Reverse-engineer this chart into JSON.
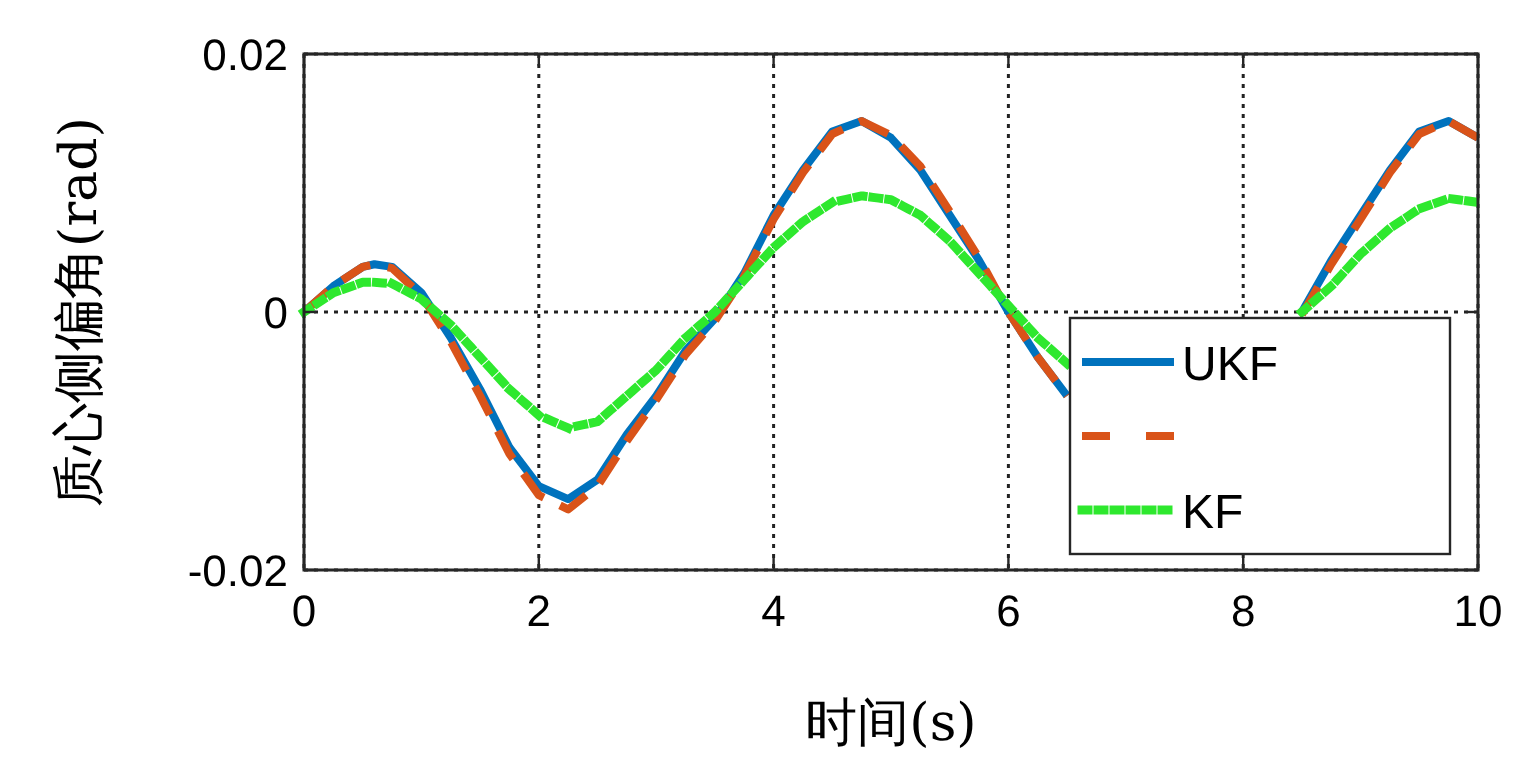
{
  "chart_data": {
    "type": "line",
    "xlabel": "时间(s)",
    "ylabel": "质心侧偏角(rad)",
    "x": [
      0,
      0.25,
      0.5,
      0.6,
      0.75,
      1.0,
      1.25,
      1.5,
      1.75,
      2.0,
      2.25,
      2.5,
      2.75,
      3.0,
      3.25,
      3.5,
      3.75,
      4.0,
      4.25,
      4.5,
      4.75,
      5.0,
      5.25,
      5.5,
      5.75,
      6.0,
      6.25,
      6.5,
      7.5,
      8.5,
      8.75,
      9.0,
      9.25,
      9.5,
      9.75,
      10
    ],
    "series": [
      {
        "name": "UKF",
        "color": "#0072bd",
        "line_style": "solid",
        "values": [
          0,
          0.002,
          0.0035,
          0.0037,
          0.0035,
          0.0015,
          -0.002,
          -0.006,
          -0.0105,
          -0.0135,
          -0.0145,
          -0.013,
          -0.0095,
          -0.0065,
          -0.003,
          -0.0005,
          0.003,
          0.0075,
          0.011,
          0.014,
          0.0148,
          0.0135,
          0.011,
          0.0075,
          0.004,
          0.0,
          -0.0035,
          -0.0065,
          null,
          0.0,
          0.004,
          0.0075,
          0.011,
          0.014,
          0.0148,
          0.0135
        ]
      },
      {
        "color": "#d95319",
        "line_style": "dashed",
        "values": [
          0,
          0.002,
          0.0035,
          0.0037,
          0.0034,
          0.0013,
          -0.0023,
          -0.0065,
          -0.011,
          -0.0142,
          -0.0153,
          -0.0135,
          -0.01,
          -0.0068,
          -0.0033,
          -0.0007,
          0.0028,
          0.0072,
          0.0108,
          0.0138,
          0.0148,
          0.0137,
          0.0113,
          0.0078,
          0.0042,
          0.0,
          -0.0035,
          -0.0065,
          null,
          -0.0002,
          0.0037,
          0.0072,
          0.0108,
          0.0138,
          0.0148,
          0.0135
        ]
      },
      {
        "name": "KF",
        "color": "#2ee82e",
        "line_style": "dotted",
        "values": [
          0,
          0.0015,
          0.0023,
          0.0023,
          0.0022,
          0.001,
          -0.001,
          -0.0035,
          -0.006,
          -0.008,
          -0.009,
          -0.0085,
          -0.0065,
          -0.0045,
          -0.002,
          0.0,
          0.0025,
          0.005,
          0.007,
          0.0085,
          0.009,
          0.0087,
          0.0075,
          0.0055,
          0.003,
          0.0005,
          -0.002,
          -0.004,
          null,
          0.0,
          0.002,
          0.0045,
          0.0065,
          0.008,
          0.0088,
          0.0085
        ]
      }
    ],
    "xlim": [
      0,
      10
    ],
    "xticks": [
      0,
      2,
      4,
      6,
      8,
      10
    ],
    "ylim": [
      -0.02,
      0.02
    ],
    "yticks": [
      -0.02,
      0,
      0.02
    ],
    "grid": true,
    "legend": "bottom right"
  }
}
